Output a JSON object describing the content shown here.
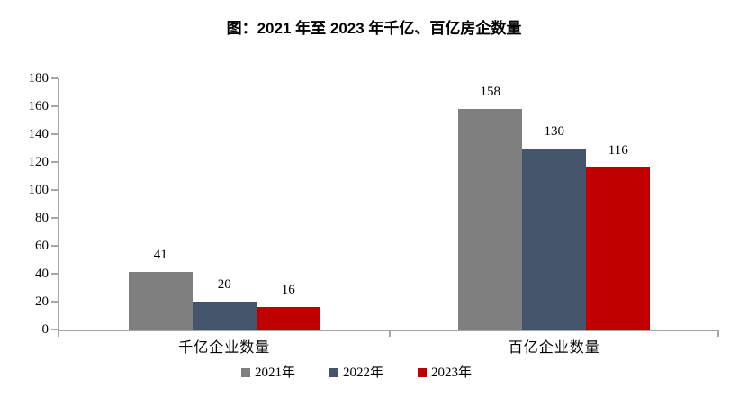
{
  "title": "图：2021 年至 2023 年千亿、百亿房企数量",
  "chart_data": {
    "type": "bar",
    "title": "图：2021 年至 2023 年千亿、百亿房企数量",
    "categories": [
      "千亿企业数量",
      "百亿企业数量"
    ],
    "series": [
      {
        "name": "2021年",
        "color": "#7f7f7f",
        "values": [
          41,
          158
        ]
      },
      {
        "name": "2022年",
        "color": "#44546a",
        "values": [
          20,
          130
        ]
      },
      {
        "name": "2023年",
        "color": "#c00000",
        "values": [
          16,
          116
        ]
      }
    ],
    "ylim": [
      0,
      180
    ],
    "y_ticks": [
      0,
      20,
      40,
      60,
      80,
      100,
      120,
      140,
      160,
      180
    ],
    "grid": false,
    "value_labels": true,
    "legend_position": "bottom",
    "axis_color": "#a6a6a6",
    "background_color": "#ffffff"
  }
}
